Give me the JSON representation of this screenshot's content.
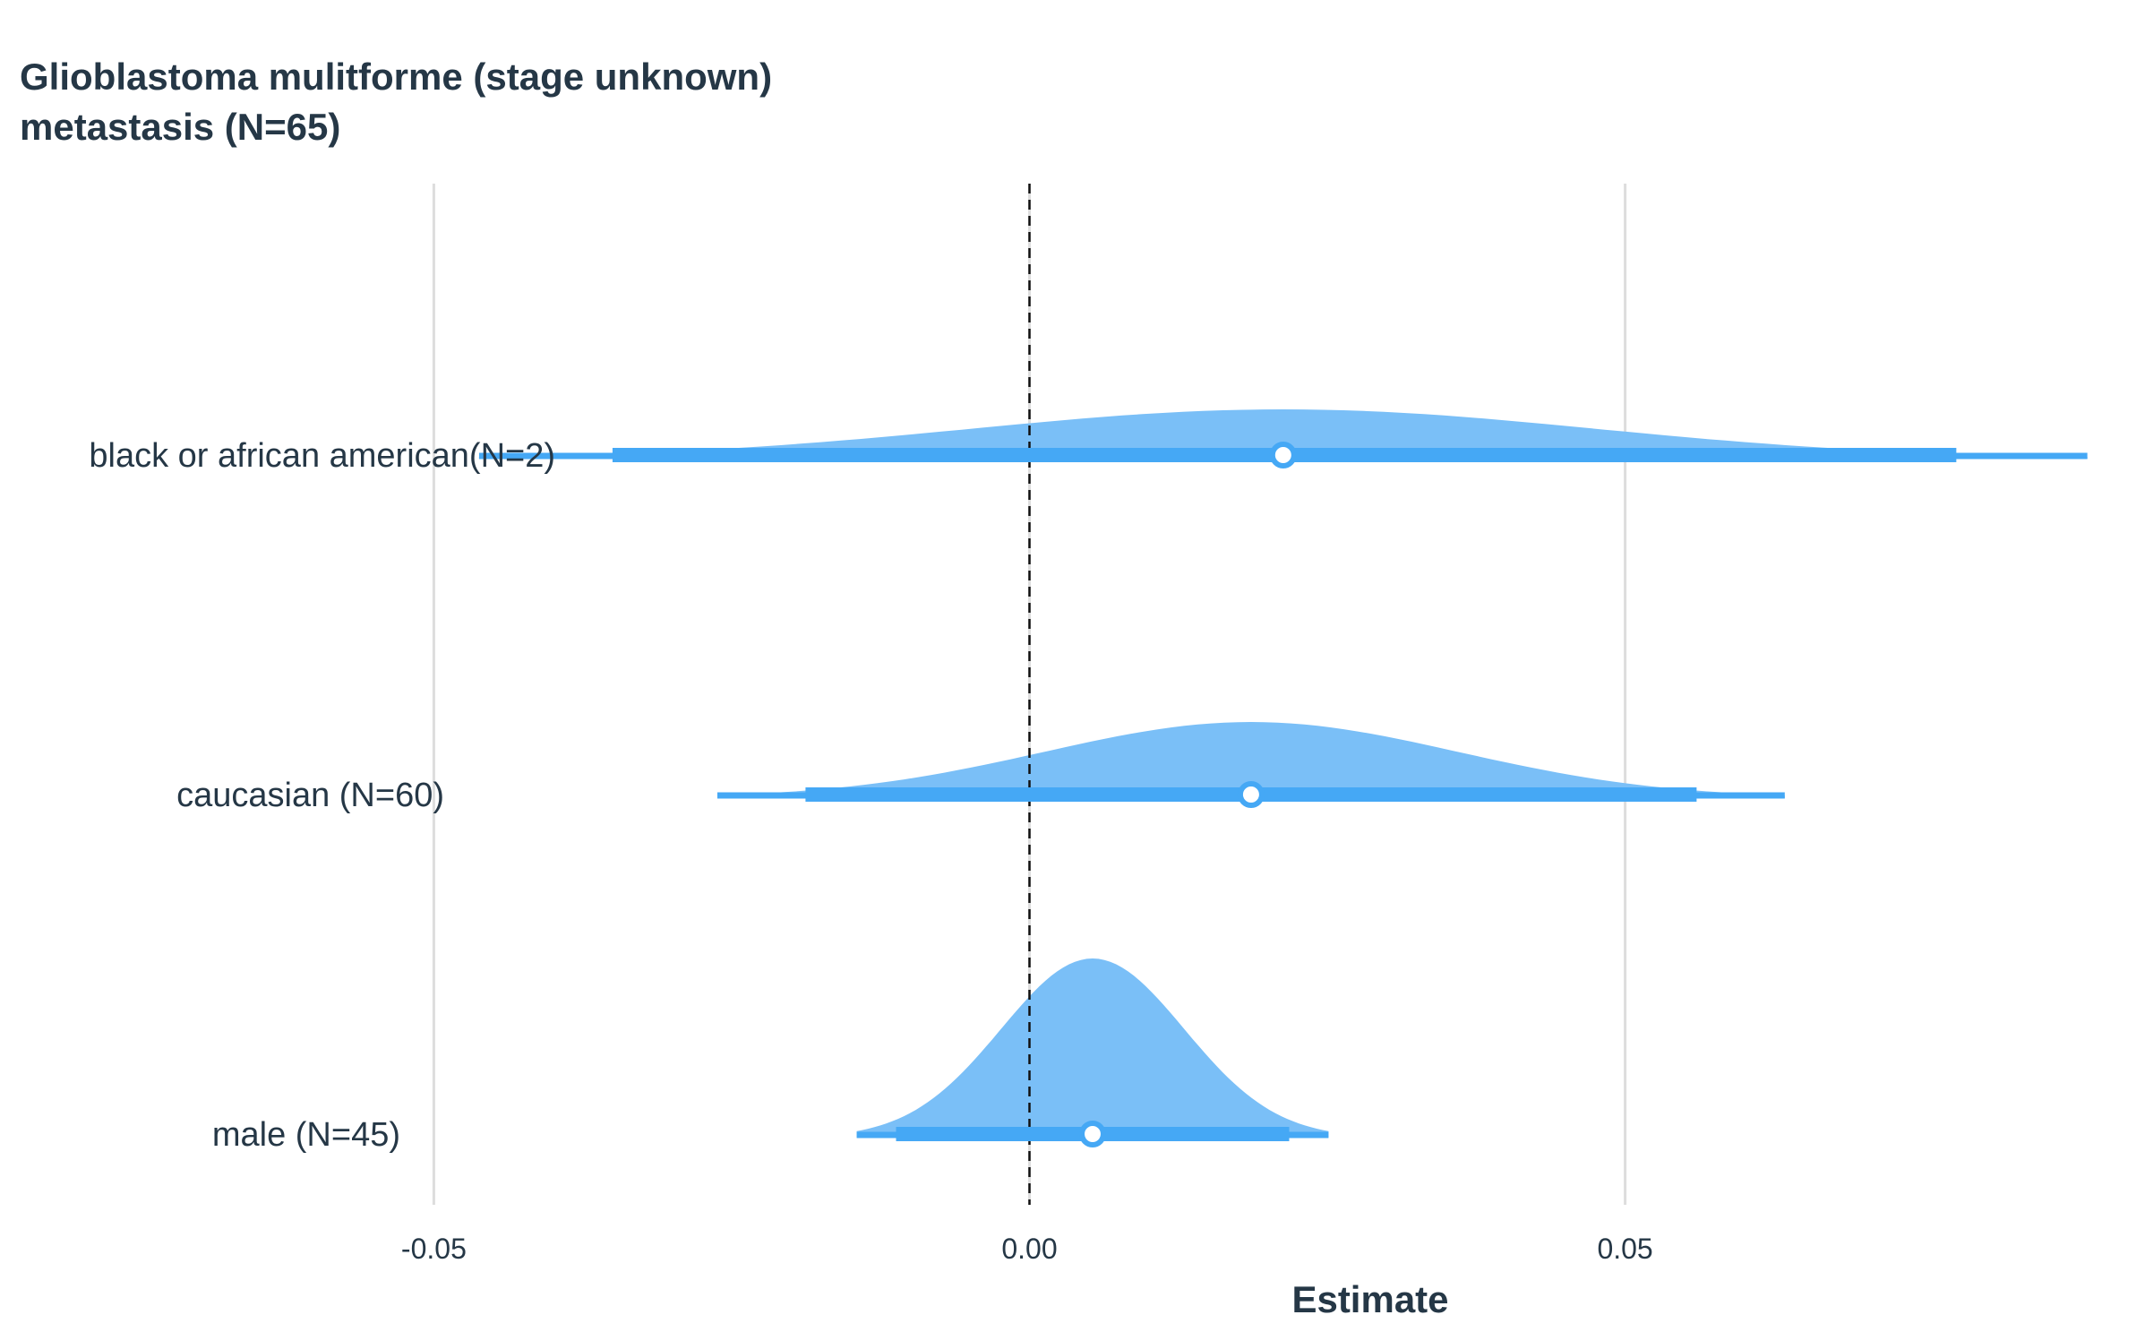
{
  "chart_data": {
    "type": "forest",
    "title_lines": [
      "Glioblastoma mulitforme (stage unknown)",
      "metastasis (N=65)"
    ],
    "xlabel": "Estimate",
    "xlim": [
      -0.0795,
      0.0895
    ],
    "xticks": [
      -0.05,
      0.0,
      0.05
    ],
    "xtick_labels": [
      "-0.05",
      "0.00",
      "0.05"
    ],
    "reference_line": 0.0,
    "grid_vertical": true,
    "colors": {
      "density": "#7ABFF7",
      "interval": "#45A8F5",
      "point_fill": "#FFFFFF",
      "text": "#253746",
      "grid": "#DDDDDD",
      "reference": "#111111"
    },
    "rows": [
      {
        "label": "black or african american(N=2)",
        "estimate": 0.0213,
        "ci_inner": [
          -0.035,
          0.0778
        ],
        "ci_outer": [
          -0.0462,
          0.0888
        ],
        "density_scale": 0.22
      },
      {
        "label": "caucasian (N=60)",
        "estimate": 0.0186,
        "ci_inner": [
          -0.0188,
          0.056
        ],
        "ci_outer": [
          -0.0262,
          0.0634
        ],
        "density_scale": 0.34
      },
      {
        "label": "male (N=45)",
        "estimate": 0.0053,
        "ci_inner": [
          -0.0112,
          0.0218
        ],
        "ci_outer": [
          -0.0145,
          0.0251
        ],
        "density_scale": 0.8
      }
    ]
  }
}
